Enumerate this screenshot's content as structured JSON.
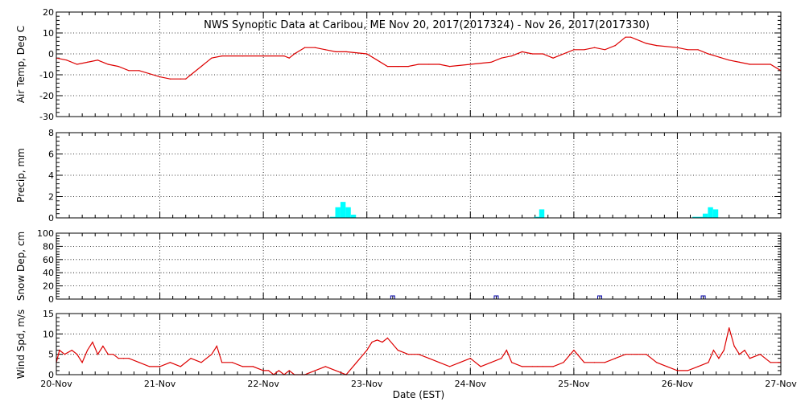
{
  "chart_data": {
    "type": "line",
    "title": "NWS Synoptic Data at Caribou, ME    Nov 20, 2017(2017324) - Nov 26, 2017(2017330)",
    "xlabel": "Date (EST)",
    "x_range": [
      0,
      7
    ],
    "x_tick_labels": [
      "20-Nov",
      "21-Nov",
      "22-Nov",
      "23-Nov",
      "24-Nov",
      "25-Nov",
      "26-Nov",
      "27-Nov"
    ],
    "grid": true,
    "panels": [
      {
        "id": "air_temp",
        "type": "line",
        "ylabel": "Air Temp, Deg C",
        "ylim": [
          -30,
          20
        ],
        "yticks": [
          -30,
          -20,
          -10,
          0,
          10,
          20
        ],
        "color": "#dd0000",
        "series": [
          {
            "x_unit": "days since 20-Nov 00:00 EST",
            "x": [
              0,
              0.1,
              0.2,
              0.3,
              0.4,
              0.5,
              0.6,
              0.7,
              0.8,
              1.0,
              1.1,
              1.2,
              1.25,
              1.3,
              1.4,
              1.5,
              1.6,
              1.8,
              2.0,
              2.2,
              2.25,
              2.3,
              2.4,
              2.5,
              2.6,
              2.7,
              2.8,
              3.0,
              3.1,
              3.2,
              3.3,
              3.4,
              3.5,
              3.6,
              3.7,
              3.8,
              4.0,
              4.2,
              4.3,
              4.4,
              4.5,
              4.6,
              4.7,
              4.8,
              5.0,
              5.1,
              5.2,
              5.3,
              5.4,
              5.5,
              5.55,
              5.6,
              5.7,
              5.8,
              6.0,
              6.1,
              6.2,
              6.3,
              6.5,
              6.6,
              6.7,
              6.9,
              7.0
            ],
            "y": [
              -2,
              -3,
              -5,
              -4,
              -3,
              -5,
              -6,
              -8,
              -8,
              -11,
              -12,
              -12,
              -12,
              -10,
              -6,
              -2,
              -1,
              -1,
              -1,
              -1,
              -2,
              0,
              3,
              3,
              2,
              1,
              1,
              0,
              -3,
              -6,
              -6,
              -6,
              -5,
              -5,
              -5,
              -6,
              -5,
              -4,
              -2,
              -1,
              1,
              0,
              0,
              -2,
              2,
              2,
              3,
              2,
              4,
              8,
              8,
              7,
              5,
              4,
              3,
              2,
              2,
              0,
              -3,
              -4,
              -5,
              -5,
              -8
            ]
          }
        ]
      },
      {
        "id": "precip",
        "type": "bar",
        "ylabel": "Precip, mm",
        "ylim": [
          0,
          8
        ],
        "yticks": [
          0,
          2,
          4,
          6,
          8
        ],
        "color": "#00ffff",
        "series": [
          {
            "x_unit": "days since 20-Nov 00:00 EST",
            "x": [
              2.67,
              2.72,
              2.77,
              2.82,
              2.87,
              4.64,
              4.69,
              6.17,
              6.22,
              6.27,
              6.32,
              6.37
            ],
            "y": [
              0.1,
              1.0,
              1.5,
              1.0,
              0.3,
              0.1,
              0.8,
              0.1,
              0.1,
              0.4,
              1.0,
              0.8
            ]
          }
        ]
      },
      {
        "id": "snow_dep",
        "type": "scatter",
        "ylabel": "Snow Dep, cm",
        "ylim": [
          0,
          100
        ],
        "yticks": [
          0,
          20,
          40,
          60,
          80,
          100
        ],
        "color": "#0000aa",
        "series": [
          {
            "x_unit": "days since 20-Nov 00:00 EST",
            "x": [
              3.25,
              4.25,
              5.25,
              6.25
            ],
            "y": [
              0,
              0,
              0,
              0
            ]
          }
        ]
      },
      {
        "id": "wind_spd",
        "type": "line",
        "ylabel": "Wind Spd, m/s",
        "ylim": [
          0,
          15
        ],
        "yticks": [
          0,
          5,
          10,
          15
        ],
        "color": "#dd0000",
        "series": [
          {
            "x_unit": "days since 20-Nov 00:00 EST",
            "x": [
              0,
              0.03,
              0.08,
              0.15,
              0.2,
              0.25,
              0.3,
              0.35,
              0.4,
              0.45,
              0.5,
              0.55,
              0.6,
              0.65,
              0.7,
              0.8,
              0.9,
              1.0,
              1.1,
              1.2,
              1.3,
              1.4,
              1.5,
              1.55,
              1.6,
              1.7,
              1.8,
              1.9,
              2.0,
              2.05,
              2.1,
              2.15,
              2.2,
              2.25,
              2.3,
              2.4,
              2.5,
              2.6,
              2.7,
              2.8,
              2.9,
              3.0,
              3.05,
              3.1,
              3.15,
              3.2,
              3.3,
              3.4,
              3.5,
              3.6,
              3.7,
              3.8,
              3.9,
              4.0,
              4.05,
              4.1,
              4.2,
              4.3,
              4.35,
              4.4,
              4.5,
              4.6,
              4.65,
              4.7,
              4.8,
              4.9,
              5.0,
              5.1,
              5.2,
              5.3,
              5.4,
              5.5,
              5.6,
              5.7,
              5.8,
              5.9,
              6.0,
              6.1,
              6.2,
              6.3,
              6.35,
              6.4,
              6.45,
              6.5,
              6.55,
              6.6,
              6.65,
              6.7,
              6.8,
              6.9,
              7.0
            ],
            "y": [
              3,
              6,
              5,
              6,
              5,
              3,
              6,
              8,
              5,
              7,
              5,
              5,
              4,
              4,
              4,
              3,
              2,
              2,
              3,
              2,
              4,
              3,
              5,
              7,
              3,
              3,
              2,
              2,
              1,
              1,
              0,
              1,
              0,
              1,
              0,
              0,
              1,
              2,
              1,
              0,
              3,
              6,
              8,
              8.5,
              8,
              9,
              6,
              5,
              5,
              4,
              3,
              2,
              3,
              4,
              3,
              2,
              3,
              4,
              6,
              3,
              2,
              2,
              2,
              2,
              2,
              3,
              6,
              3,
              3,
              3,
              4,
              5,
              5,
              5,
              3,
              2,
              1,
              1,
              2,
              3,
              6,
              4,
              6,
              11.5,
              7,
              5,
              6,
              4,
              5,
              3,
              3
            ]
          }
        ]
      }
    ]
  }
}
